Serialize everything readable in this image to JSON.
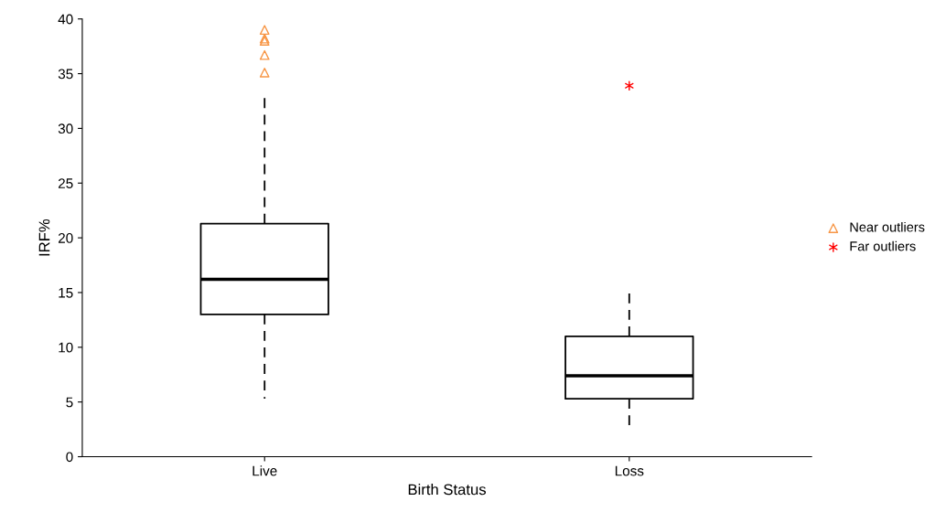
{
  "chart_data": {
    "type": "box",
    "xlabel": "Birth Status",
    "ylabel": "IRF%",
    "categories": [
      "Live",
      "Loss"
    ],
    "boxes": [
      {
        "low": 5.3,
        "q1": 13.0,
        "median": 16.2,
        "q3": 21.3,
        "high": 33.0
      },
      {
        "low": 2.4,
        "q1": 5.3,
        "median": 7.4,
        "q3": 11.0,
        "high": 15.0
      }
    ],
    "series": [
      {
        "name": "Near outliers",
        "type": "scatter",
        "color": "#f79646",
        "marker": "triangle",
        "x": [
          "Live",
          "Live",
          "Live",
          "Live",
          "Live"
        ],
        "values": [
          39.0,
          38.2,
          38.0,
          36.7,
          35.1
        ]
      },
      {
        "name": "Far outliers",
        "type": "scatter",
        "color": "#ff0000",
        "marker": "cross",
        "x": [
          "Loss"
        ],
        "values": [
          33.9
        ]
      }
    ],
    "ylim": [
      0,
      40
    ],
    "yticks": [
      0,
      5,
      10,
      15,
      20,
      25,
      30,
      35,
      40
    ],
    "line_style": "dashed",
    "grid": false,
    "legend": "right"
  }
}
